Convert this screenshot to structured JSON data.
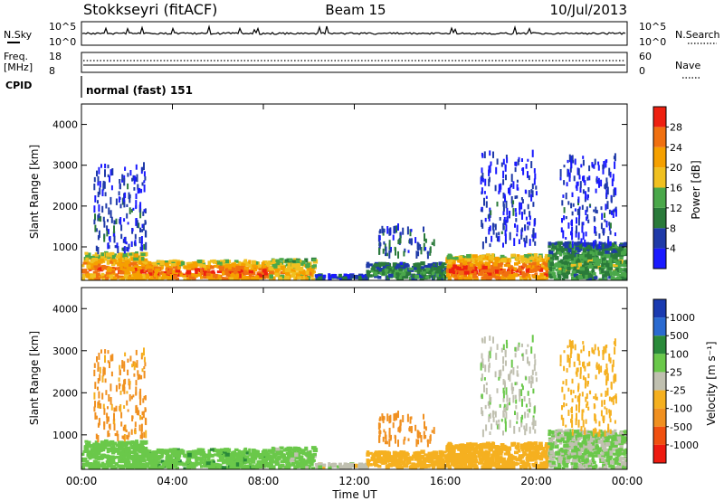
{
  "chart_data": {
    "type": "heatmap",
    "header": {
      "radar": "Stokkseyri (fitACF)",
      "beam": "Beam 15",
      "date": "10/Jul/2013"
    },
    "top_panels": {
      "nsky_label": "N.Sky",
      "nsky_ticks": [
        "10^5",
        "10^0"
      ],
      "nsearch_label": "N.Search",
      "nsearch_ticks": [
        "10^5",
        "10^0"
      ],
      "freq_label": "Freq.",
      "freq_unit": "[MHz]",
      "freq_ticks": [
        18,
        8
      ],
      "nave_label": "Nave",
      "nave_ticks": [
        60,
        0
      ],
      "cpid_label": "CPID",
      "cpid_value": "normal (fast) 151"
    },
    "x_axis": {
      "label": "Time UT",
      "ticks": [
        "00:00",
        "04:00",
        "08:00",
        "12:00",
        "16:00",
        "20:00",
        "00:00"
      ],
      "range_hours": [
        0,
        24
      ]
    },
    "y_axis": {
      "label": "Slant Range [km]",
      "ticks": [
        1000,
        2000,
        3000,
        4000
      ],
      "range_km": [
        180,
        4500
      ]
    },
    "power_panel": {
      "colorbar_label": "Power [dB]",
      "colorbar_ticks": [
        4,
        8,
        12,
        16,
        20,
        24,
        28
      ],
      "colors": [
        "#1a1aff",
        "#1f3aa8",
        "#2a7a3a",
        "#4aa84a",
        "#f0c020",
        "#f5a000",
        "#f07010",
        "#ee2010"
      ]
    },
    "velocity_panel": {
      "colorbar_label": "Velocity [m s⁻¹]",
      "colorbar_ticks": [
        "1000",
        "500",
        "100",
        "25",
        "-25",
        "-100",
        "-500",
        "-1000"
      ],
      "colors": [
        "#1a3ab0",
        "#2a6ad0",
        "#2a8a3a",
        "#6ac84a",
        "#c0c0b0",
        "#f5b020",
        "#f09020",
        "#f05010",
        "#ee1a10"
      ]
    },
    "echo_regions": [
      {
        "t0": 0.0,
        "t1": 2.8,
        "r0": 200,
        "r1": 850,
        "power": 26,
        "velocity": 60
      },
      {
        "t0": 2.8,
        "t1": 8.2,
        "r0": 200,
        "r1": 650,
        "power": 28,
        "velocity": 70
      },
      {
        "t0": 8.2,
        "t1": 10.2,
        "r0": 200,
        "r1": 700,
        "power": 22,
        "velocity": 50
      },
      {
        "t0": 10.2,
        "t1": 12.5,
        "r0": 220,
        "r1": 300,
        "power": 8,
        "velocity": 0
      },
      {
        "t0": 12.5,
        "t1": 16.0,
        "r0": 220,
        "r1": 600,
        "power": 12,
        "velocity": -60
      },
      {
        "t0": 16.0,
        "t1": 20.5,
        "r0": 200,
        "r1": 800,
        "power": 28,
        "velocity": -60
      },
      {
        "t0": 20.5,
        "t1": 24.0,
        "r0": 200,
        "r1": 1100,
        "power": 14,
        "velocity": 30
      },
      {
        "t0": 0.5,
        "t1": 2.8,
        "r0": 900,
        "r1": 3000,
        "power": 6,
        "velocity": -150
      },
      {
        "t0": 13.0,
        "t1": 15.5,
        "r0": 800,
        "r1": 1500,
        "power": 8,
        "velocity": -300
      },
      {
        "t0": 17.5,
        "t1": 20.0,
        "r0": 1000,
        "r1": 3300,
        "power": 5,
        "velocity": 15
      },
      {
        "t0": 21.0,
        "t1": 23.5,
        "r0": 1000,
        "r1": 3200,
        "power": 5,
        "velocity": -60
      }
    ]
  }
}
